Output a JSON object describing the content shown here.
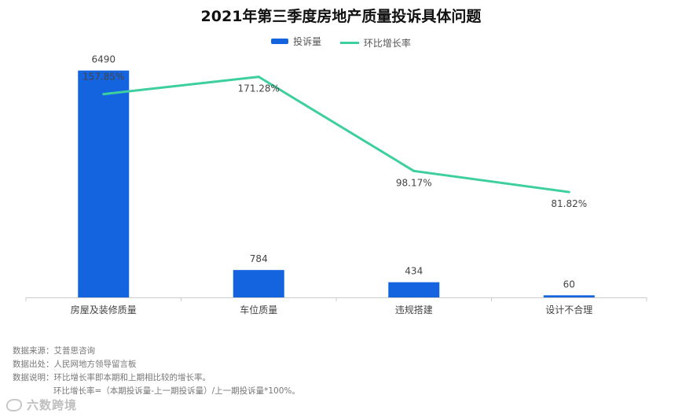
{
  "title": "2021年第三季度房地产质量投诉具体问题",
  "legend": {
    "bar_label": "投诉量",
    "line_label": "环比增长率"
  },
  "colors": {
    "bar": "#1464e0",
    "line": "#3dcf9f",
    "axis": "#cccccc"
  },
  "chart_data": {
    "type": "bar",
    "title": "2021年第三季度房地产质量投诉具体问题",
    "categories": [
      "房屋及装修质量",
      "车位质量",
      "违规搭建",
      "设计不合理"
    ],
    "series": [
      {
        "name": "投诉量",
        "type": "bar",
        "values": [
          6490,
          784,
          434,
          60
        ],
        "labels": [
          "6490",
          "784",
          "434",
          "60"
        ]
      },
      {
        "name": "环比增长率",
        "type": "line",
        "values": [
          157.85,
          171.28,
          98.17,
          81.82
        ],
        "labels": [
          "157.85%",
          "171.28%",
          "98.17%",
          "81.82%"
        ]
      }
    ],
    "ylim_left": [
      0,
      7000
    ],
    "ylim_right": [
      0,
      190
    ],
    "grid": false,
    "legend_position": "top-center"
  },
  "notes": {
    "source": "数据来源：艾普思咨询",
    "origin": "数据出处：人民网地方领导留言板",
    "explanation": "数据说明：环比增长率即本期和上期相比较的增长率。",
    "formula": "环比增长率=（本期投诉量-上一期投诉量）/上一期投诉量*100%。"
  },
  "watermark": "六数跨境"
}
